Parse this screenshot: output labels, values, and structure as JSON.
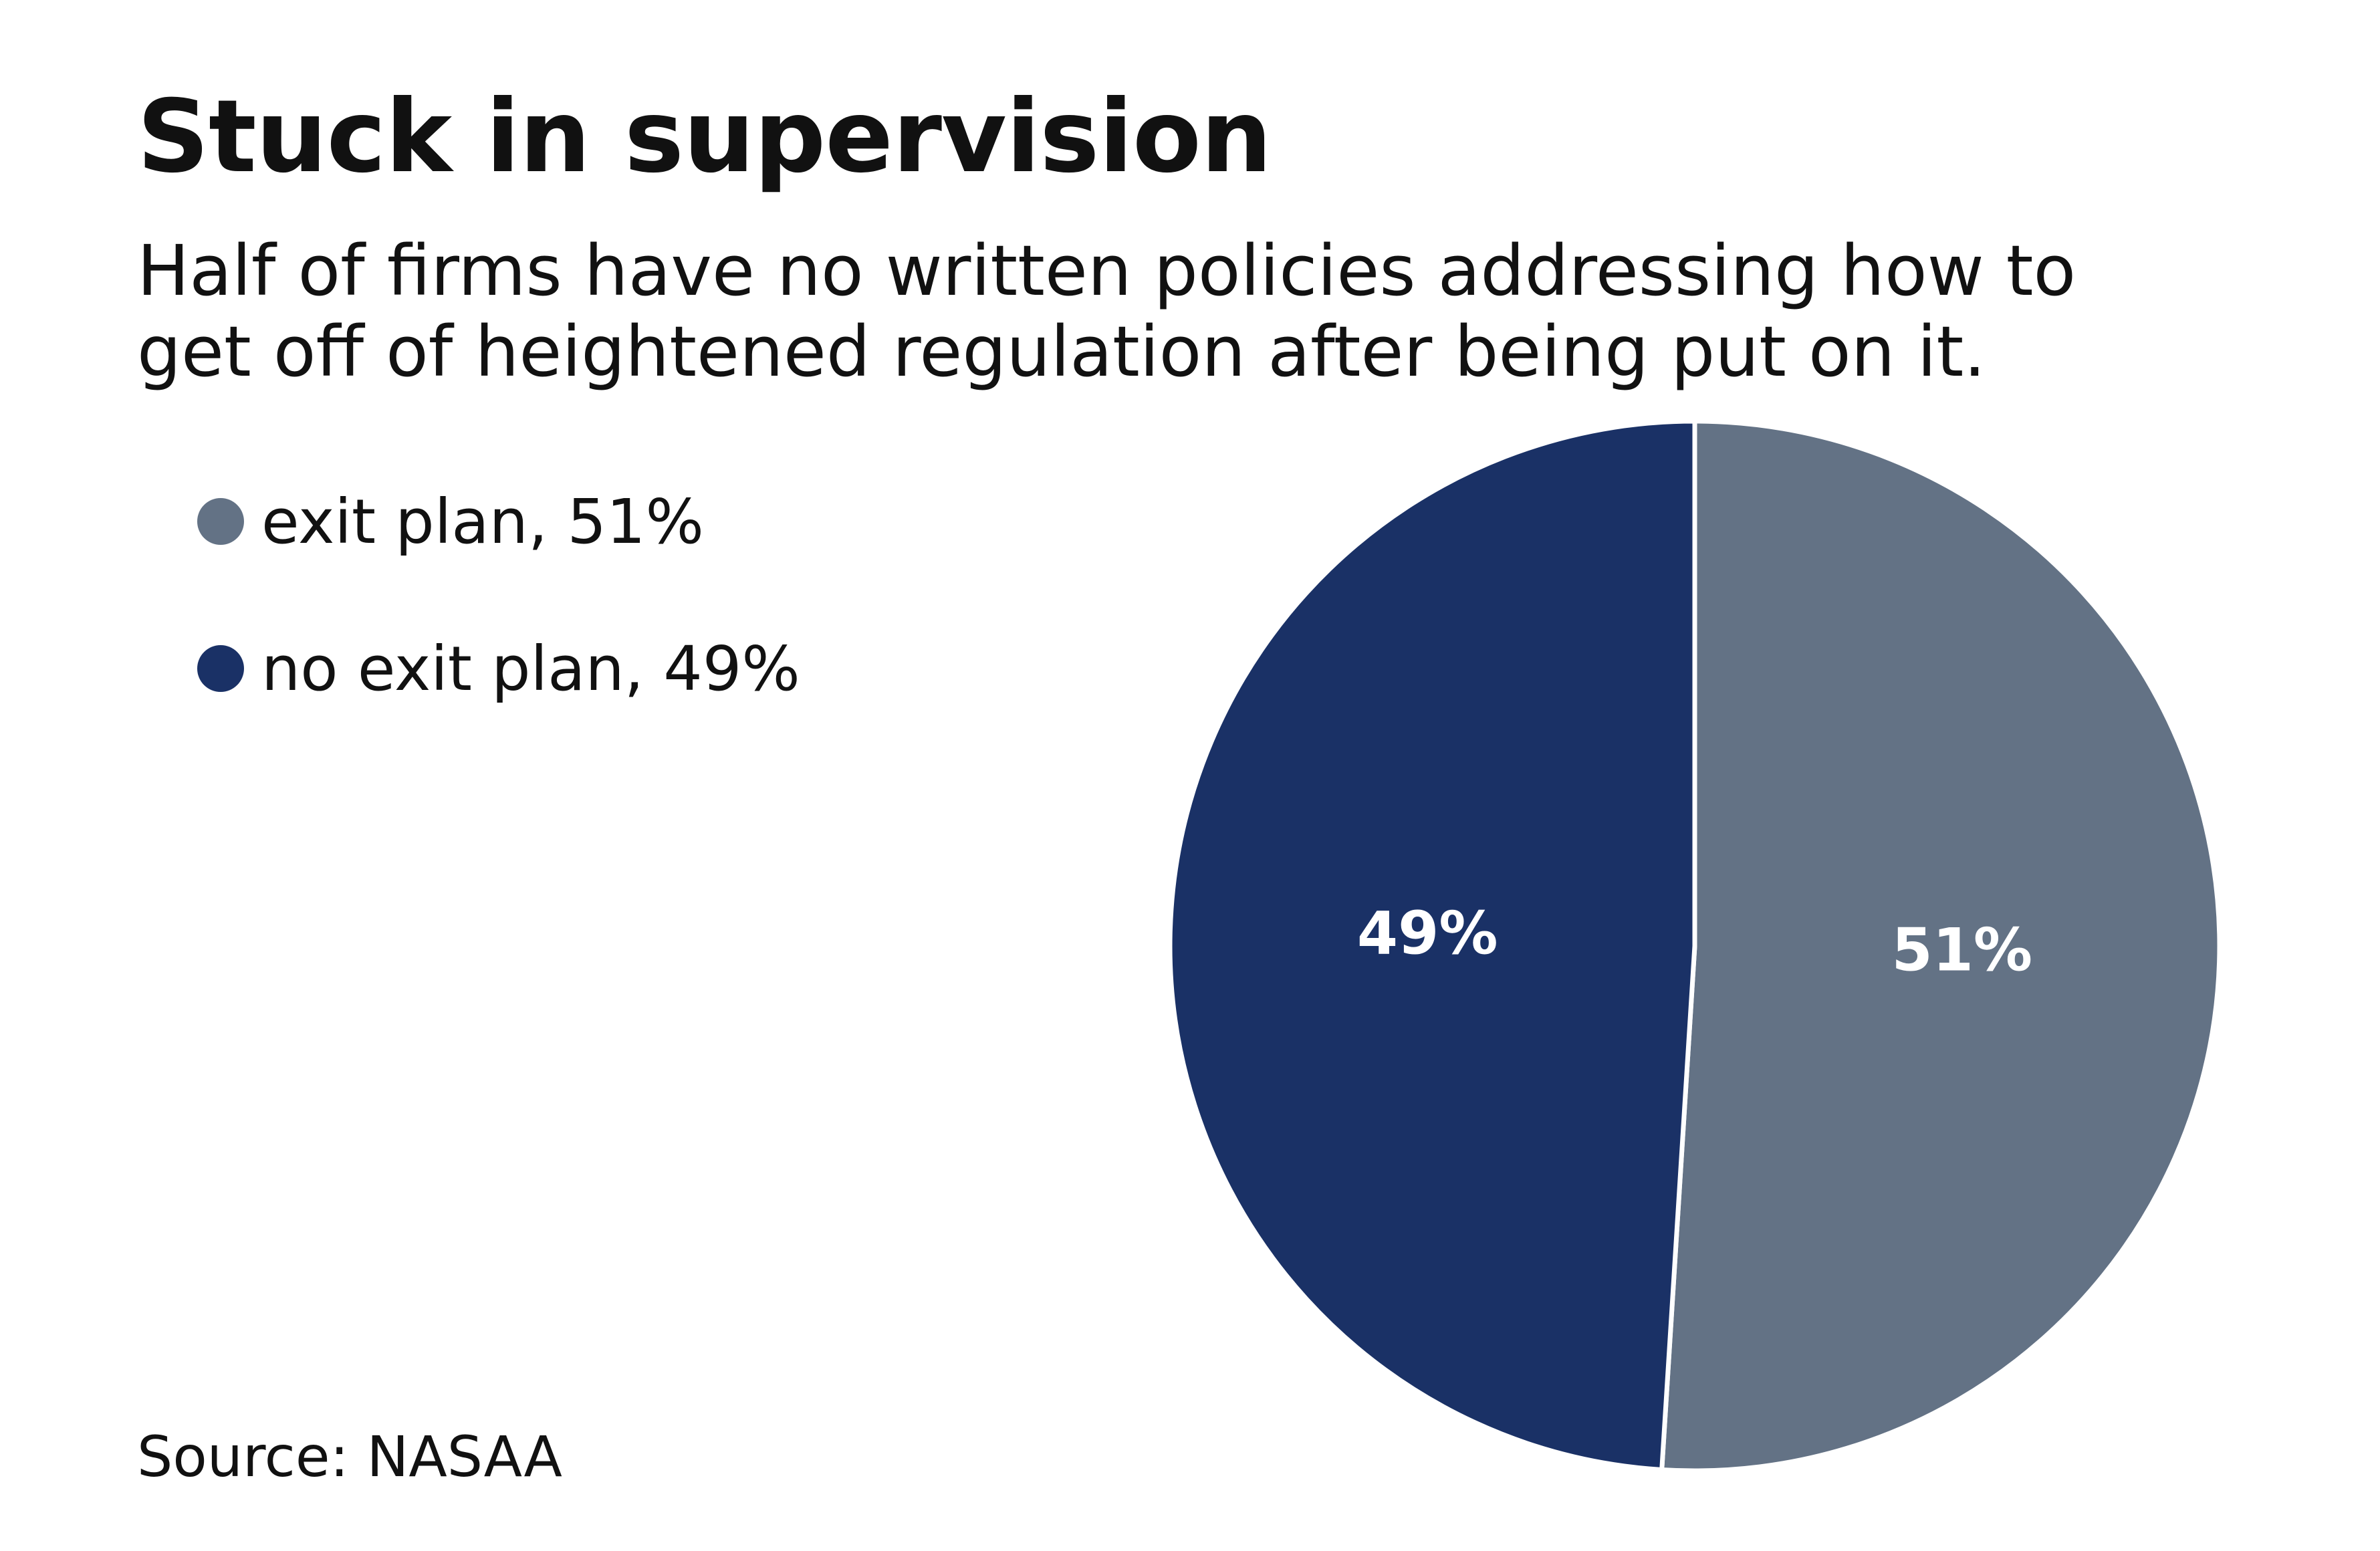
{
  "header": {
    "title": "Stuck in supervision",
    "subtitle_line1": "Half of firms have no written policies addressing how to",
    "subtitle_line2": "get off of heightened regulation after being put on it."
  },
  "legend": {
    "items": [
      {
        "label": "exit plan, 51%",
        "color": "#637285"
      },
      {
        "label": "no exit plan, 49%",
        "color": "#1a3166"
      }
    ]
  },
  "footer": {
    "source": "Source: NASAA"
  },
  "chart_data": {
    "type": "pie",
    "title": "Stuck in supervision",
    "subtitle": "Half of firms have no written policies addressing how to get off of heightened regulation after being put on it.",
    "slices": [
      {
        "label": "exit plan",
        "value": 51,
        "display": "51%",
        "color": "#637285"
      },
      {
        "label": "no exit plan",
        "value": 49,
        "display": "49%",
        "color": "#1a3166"
      }
    ],
    "start_angle": "12 o'clock",
    "direction": "clockwise",
    "legend_position": "top-left",
    "source": "Source: NASAA"
  }
}
